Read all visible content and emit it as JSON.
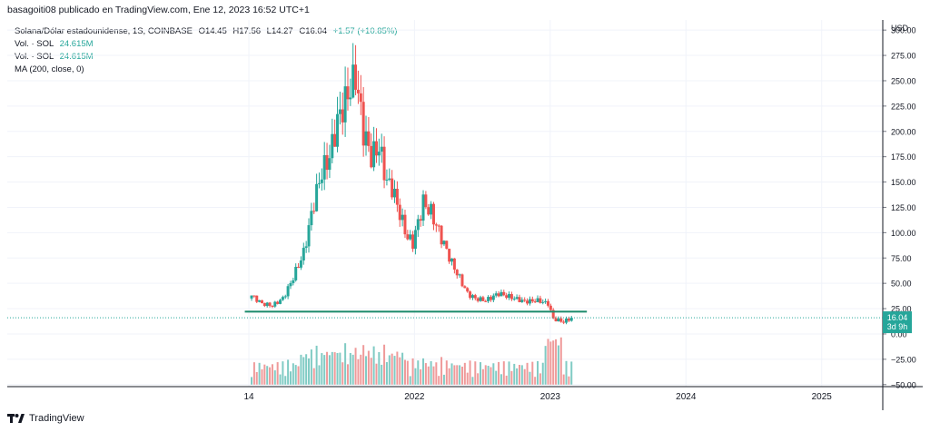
{
  "header": {
    "text": "basagoiti08 publicado en TradingView.com, Ene 12, 2023 16:52 UTC+1"
  },
  "legend": {
    "symbol": "Solana/Dólar estadounidense, 1S, COINBASE",
    "ohlc": {
      "open": "O14.45",
      "high": "H17.56",
      "low": "L14.27",
      "close": "C16.04",
      "change": "+1.57 (+10.85%)"
    },
    "vol1_label": "Vol. · SOL",
    "vol1_value": "24.615M",
    "vol2_label": "Vol. · SOL",
    "vol2_value": "24.615M",
    "ma_label": "MA (200, close, 0)"
  },
  "price_badge": {
    "price": "16.04",
    "countdown": "3d 9h"
  },
  "footer": {
    "brand": "TradingView"
  },
  "colors": {
    "up": "#26a69a",
    "down": "#ef5350",
    "vol_up": "#80cbc4",
    "vol_down": "#ef9a9a",
    "hline": "#1b8a6b"
  },
  "chart_data": {
    "type": "candlestick",
    "currency": "USD",
    "y_ticks": [
      300,
      275,
      250,
      225,
      200,
      175,
      150,
      125,
      100,
      75,
      50,
      25,
      0,
      -25,
      -50
    ],
    "y_tick_labels": [
      "300.00",
      "275.00",
      "250.00",
      "225.00",
      "200.00",
      "175.00",
      "150.00",
      "125.00",
      "100.00",
      "75.00",
      "50.00",
      "25.00",
      "0.00",
      "−25.00",
      "−50.00"
    ],
    "ylim": [
      -52,
      310
    ],
    "x_ticks": [
      {
        "label": "14",
        "t": 2020.78
      },
      {
        "label": "2022",
        "t": 2022.0
      },
      {
        "label": "2023",
        "t": 2023.0
      },
      {
        "label": "2024",
        "t": 2024.0
      },
      {
        "label": "2025",
        "t": 2025.0
      }
    ],
    "xlim": [
      2019.0,
      2025.45
    ],
    "candle_start": 2020.8,
    "candle_step": 0.01916,
    "close_anchors": [
      [
        0,
        38
      ],
      [
        4,
        30
      ],
      [
        8,
        28
      ],
      [
        12,
        35
      ],
      [
        15,
        50
      ],
      [
        20,
        80
      ],
      [
        24,
        130
      ],
      [
        27,
        160
      ],
      [
        30,
        175
      ],
      [
        33,
        210
      ],
      [
        36,
        230
      ],
      [
        40,
        255
      ],
      [
        43,
        200
      ],
      [
        46,
        175
      ],
      [
        49,
        185
      ],
      [
        52,
        150
      ],
      [
        54,
        145
      ],
      [
        58,
        110
      ],
      [
        60,
        95
      ],
      [
        62,
        90
      ],
      [
        66,
        130
      ],
      [
        69,
        120
      ],
      [
        73,
        95
      ],
      [
        77,
        70
      ],
      [
        80,
        55
      ],
      [
        83,
        40
      ],
      [
        86,
        35
      ],
      [
        90,
        33
      ],
      [
        95,
        40
      ],
      [
        100,
        36
      ],
      [
        105,
        32
      ],
      [
        110,
        33
      ],
      [
        114,
        30
      ],
      [
        116,
        15
      ],
      [
        120,
        12
      ],
      [
        123,
        16
      ]
    ],
    "volume_scale_max": 32.5,
    "volume_base": -50,
    "support_line": {
      "y": 22,
      "from_t": 2020.75,
      "to_t": 2023.27
    },
    "last_price": 16.04
  }
}
